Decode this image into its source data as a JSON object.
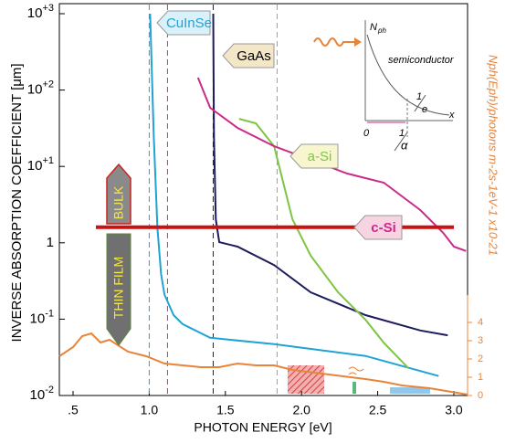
{
  "chart_data": {
    "type": "line",
    "y_axis_label": "INVERSE ABSORPTION COEFFICIENT [μm]",
    "x_axis_label": "PHOTON ENERGY [eV]",
    "y2_axis_label": "Nph(Eph)/photons m-2s-1eV-1 x10-21",
    "xlim": [
      0.41,
      3.09
    ],
    "xticks": [
      {
        "value": 0.5,
        "label": ".5"
      },
      {
        "value": 1.0,
        "label": "1.0"
      },
      {
        "value": 1.5,
        "label": "1.5"
      },
      {
        "value": 2.0,
        "label": "2.0"
      },
      {
        "value": 2.5,
        "label": "2.5"
      },
      {
        "value": 3.0,
        "label": "3.0"
      }
    ],
    "ylim": [
      0.01,
      1000
    ],
    "ylog": true,
    "yticks": [
      {
        "value": 1000,
        "label": "10+3"
      },
      {
        "value": 100,
        "label": "10+2"
      },
      {
        "value": 10,
        "label": "10+1"
      },
      1,
      {
        "value": 0.1,
        "label": "10-1"
      },
      {
        "value": 0.01,
        "label": "10-2"
      }
    ],
    "y2lim": [
      0,
      5.5
    ],
    "y2ticks": [
      0,
      1,
      2,
      3,
      4
    ],
    "threshold": {
      "value": 1.6,
      "color": "#cc1111"
    },
    "regions": [
      {
        "label": "BULK"
      },
      {
        "label": "THIN FILM"
      }
    ],
    "series": [
      {
        "name": "CuInSe",
        "color": "#1fa3d6",
        "gap": 1.0,
        "x": [
          1.006,
          1.03,
          1.054,
          1.078,
          1.1,
          1.16,
          1.22,
          1.4,
          1.82,
          2.42,
          2.9
        ],
        "values": [
          1000,
          24.3,
          1.55,
          0.39,
          0.21,
          0.113,
          0.086,
          0.057,
          0.047,
          0.033,
          0.018
        ]
      },
      {
        "name": "GaAs",
        "color": "#1c1c5c",
        "gap": 1.42,
        "x": [
          1.42,
          1.425,
          1.437,
          1.46,
          1.58,
          1.82,
          2.06,
          2.42,
          2.78,
          2.96
        ],
        "values": [
          1000,
          24.3,
          2.04,
          1.02,
          0.89,
          0.51,
          0.225,
          0.113,
          0.071,
          0.0615
        ]
      },
      {
        "name": "a-Si",
        "color": "#7cc644",
        "gap": 1.84,
        "x": [
          1.59,
          1.7,
          1.82,
          1.94,
          2.06,
          2.24,
          2.42,
          2.54,
          2.7
        ],
        "values": [
          42,
          36.7,
          18.4,
          2.04,
          0.68,
          0.225,
          0.098,
          0.049,
          0.023
        ]
      },
      {
        "name": "c-Si",
        "color": "#cc2a8a",
        "gap": 1.12,
        "x": [
          1.32,
          1.4,
          1.58,
          1.82,
          2.06,
          2.3,
          2.54,
          2.78,
          2.93,
          3.0,
          3.08
        ],
        "values": [
          145.5,
          58.6,
          32,
          18.4,
          12.2,
          8.07,
          6.12,
          2.68,
          1.35,
          0.89,
          0.78
        ]
      },
      {
        "color": "#e8843a",
        "axis": "y2",
        "x": [
          0.41,
          0.5,
          0.56,
          0.62,
          0.68,
          0.74,
          0.86,
          0.98,
          1.1,
          1.22,
          1.34,
          1.46,
          1.58,
          1.7,
          1.82,
          1.94,
          2.18,
          2.42,
          2.54,
          2.66,
          2.84,
          3.02,
          3.09
        ],
        "values": [
          2.15,
          2.65,
          3.25,
          3.4,
          2.9,
          3.05,
          2.4,
          2.15,
          1.75,
          1.65,
          1.55,
          1.55,
          1.75,
          1.65,
          1.65,
          1.4,
          1.15,
          0.9,
          0.75,
          0.55,
          0.4,
          0.15,
          0.05
        ]
      }
    ],
    "inset": {
      "texts": [
        "N",
        "ph",
        "semiconductor",
        "1",
        "e",
        "0",
        "1",
        "α",
        "x"
      ]
    }
  }
}
